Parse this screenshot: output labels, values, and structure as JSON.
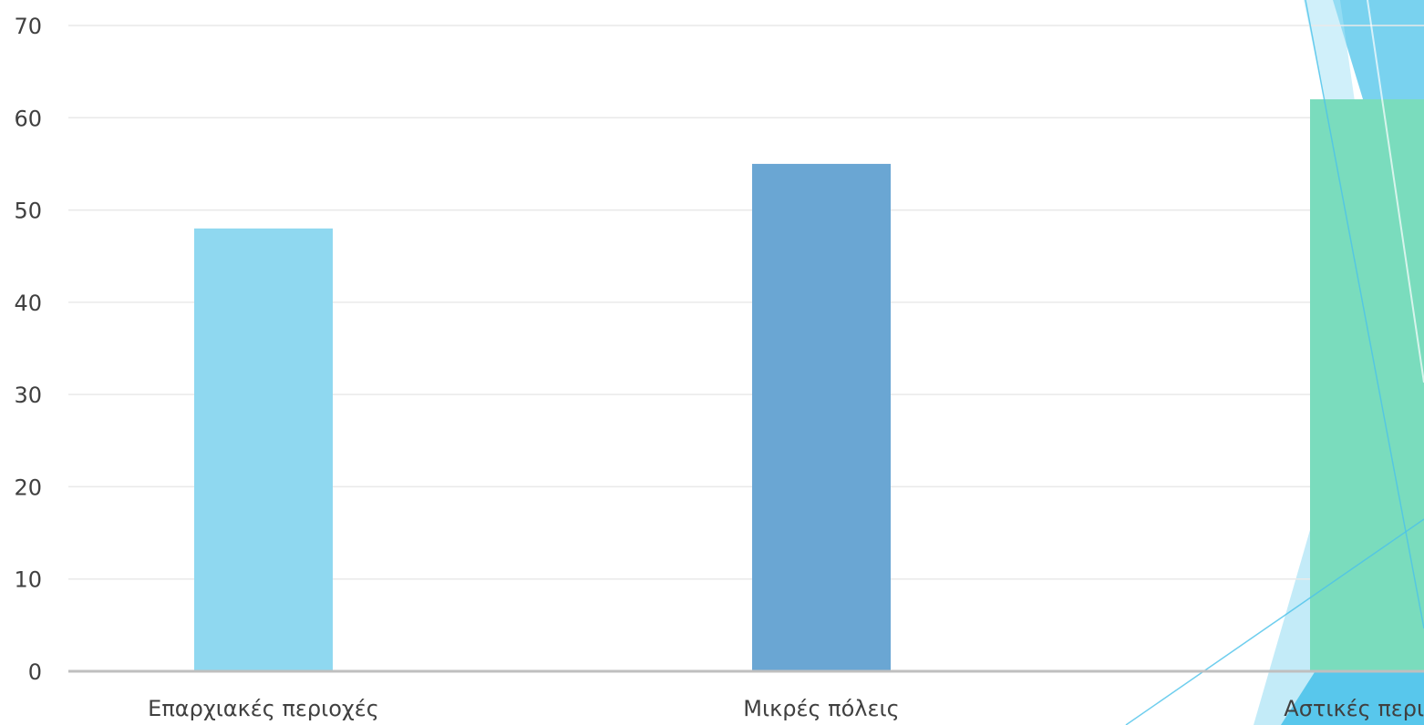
{
  "chart_data": {
    "type": "bar",
    "categories": [
      "Επαρχιακές περιοχές",
      "Μικρές πόλεις",
      "Αστικές περιοχές"
    ],
    "values": [
      48,
      55,
      62
    ],
    "bar_colors": [
      "#8fd8f0",
      "#6aa6d3",
      "#7adcbd"
    ],
    "ylim": [
      0,
      70
    ],
    "yticks": [
      0,
      10,
      20,
      30,
      40,
      50,
      60,
      70
    ],
    "title": "",
    "xlabel": "",
    "ylabel": "",
    "grid": true
  },
  "decoration": {
    "accent_colors": [
      "#4cc3ea",
      "#a9e3f5",
      "#2fc7b0"
    ]
  }
}
